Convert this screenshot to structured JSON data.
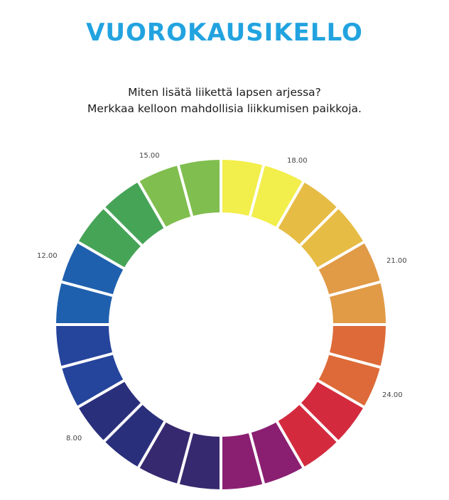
{
  "header": {
    "title": "VUOROKAUSIKELLO",
    "question_line1": "Miten lisätä liikettä lapsen arjessa?",
    "question_line2": "Merkkaa kelloon mahdollisia liikkumisen paikkoja."
  },
  "clock": {
    "segment_count": 24,
    "hour_labels": {
      "h15": "15.00",
      "h18": "18.00",
      "h21": "21.00",
      "h24": "24.00",
      "h8": "8.00",
      "h12": "12.00"
    },
    "segment_colors": [
      "#f2ee4b",
      "#f2ee4b",
      "#e6bc45",
      "#e6bc45",
      "#e19a46",
      "#e19a46",
      "#dd6a38",
      "#dd6a38",
      "#d42a3e",
      "#d42a3e",
      "#8a1f72",
      "#8a1f72",
      "#37296f",
      "#37296f",
      "#2a2f7c",
      "#2a2f7c",
      "#25449c",
      "#25449c",
      "#1f60ae",
      "#1f60ae",
      "#46a457",
      "#46a457",
      "#80be4f",
      "#80be4f"
    ],
    "divider_color": "#ffffff"
  }
}
